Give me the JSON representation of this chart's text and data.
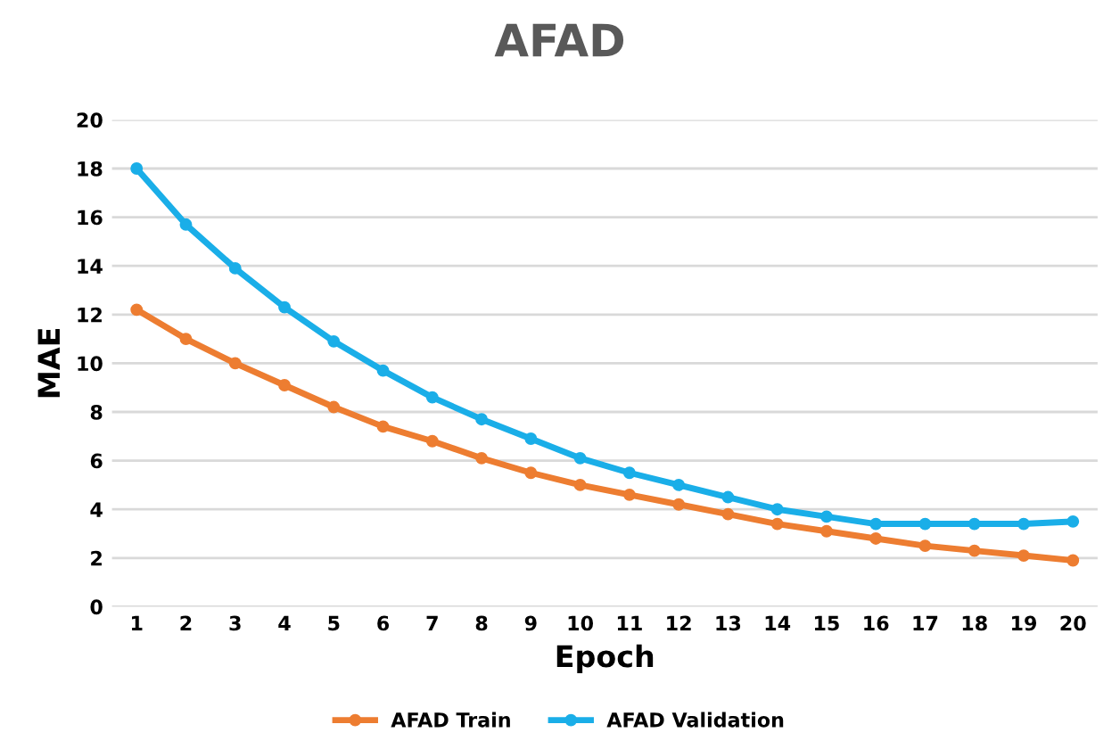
{
  "chart_data": {
    "type": "line",
    "title": "AFAD",
    "xlabel": "Epoch",
    "ylabel": "MAE",
    "categories": [
      "1",
      "2",
      "3",
      "4",
      "5",
      "6",
      "7",
      "8",
      "9",
      "10",
      "11",
      "12",
      "13",
      "14",
      "15",
      "16",
      "17",
      "18",
      "19",
      "20"
    ],
    "series": [
      {
        "name": "AFAD Train",
        "color": "#ed7d31",
        "values": [
          12.2,
          11.0,
          10.0,
          9.1,
          8.2,
          7.4,
          6.8,
          6.1,
          5.5,
          5.0,
          4.6,
          4.2,
          3.8,
          3.4,
          3.1,
          2.8,
          2.5,
          2.3,
          2.1,
          1.9
        ]
      },
      {
        "name": "AFAD Validation",
        "color": "#1aaee8",
        "values": [
          18.0,
          15.7,
          13.9,
          12.3,
          10.9,
          9.7,
          8.6,
          7.7,
          6.9,
          6.1,
          5.5,
          5.0,
          4.5,
          4.0,
          3.7,
          3.4,
          3.4,
          3.4,
          3.4,
          3.5
        ]
      }
    ],
    "ylim": [
      0,
      20
    ],
    "yticks": [
      0,
      2,
      4,
      6,
      8,
      10,
      12,
      14,
      16,
      18,
      20
    ],
    "grid": "y",
    "legend": "bottom",
    "marker": "circle",
    "line_style": "solid"
  }
}
